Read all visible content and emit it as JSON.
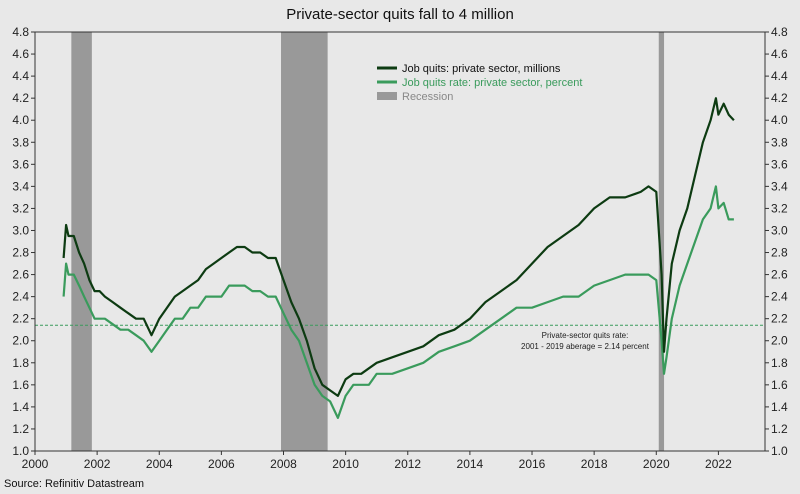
{
  "title": "Private-sector quits fall to 4 million",
  "source": "Source: Refinitiv Datastream",
  "colors": {
    "quits": "#0d3b12",
    "quits_rate": "#3a9b5c",
    "recession": "#999999",
    "average_line": "#3a9b5c",
    "background": "#e8e8e8"
  },
  "annotation": {
    "line1": "Private-sector quits rate:",
    "line2": "2001 - 2019 aberage = 2.14 percent"
  },
  "chart_data": {
    "type": "line",
    "title": "Private-sector quits fall to 4 million",
    "xlabel": "",
    "ylabel": "",
    "xlim": [
      2000,
      2023.5
    ],
    "ylim": [
      1.0,
      4.8
    ],
    "x_ticks": [
      "2000",
      "2002",
      "2004",
      "2006",
      "2008",
      "2010",
      "2012",
      "2014",
      "2016",
      "2018",
      "2020",
      "2022"
    ],
    "y_ticks": [
      "1.0",
      "1.2",
      "1.4",
      "1.6",
      "1.8",
      "2.0",
      "2.2",
      "2.4",
      "2.6",
      "2.8",
      "3.0",
      "3.2",
      "3.4",
      "3.6",
      "3.8",
      "4.0",
      "4.2",
      "4.4",
      "4.6",
      "4.8"
    ],
    "grid": false,
    "legend_position": "top-center",
    "recessions": [
      {
        "start": 2001.17,
        "end": 2001.83,
        "label": "Recession"
      },
      {
        "start": 2007.92,
        "end": 2009.42,
        "label": "Recession"
      },
      {
        "start": 2020.08,
        "end": 2020.25,
        "label": "Recession"
      }
    ],
    "reference_line": {
      "y": 2.14,
      "label": "2001 - 2019 aberage = 2.14 percent"
    },
    "series": [
      {
        "name": "Job quits: private sector, millions",
        "x": [
          2000.92,
          2001.0,
          2001.08,
          2001.25,
          2001.42,
          2001.58,
          2001.75,
          2001.92,
          2002.08,
          2002.25,
          2002.5,
          2002.75,
          2003.0,
          2003.25,
          2003.5,
          2003.75,
          2004.0,
          2004.25,
          2004.5,
          2004.75,
          2005.0,
          2005.25,
          2005.5,
          2005.75,
          2006.0,
          2006.25,
          2006.5,
          2006.75,
          2007.0,
          2007.25,
          2007.5,
          2007.75,
          2008.0,
          2008.25,
          2008.5,
          2008.75,
          2009.0,
          2009.25,
          2009.5,
          2009.75,
          2010.0,
          2010.25,
          2010.5,
          2010.75,
          2011.0,
          2011.5,
          2012.0,
          2012.5,
          2013.0,
          2013.5,
          2014.0,
          2014.5,
          2015.0,
          2015.5,
          2016.0,
          2016.5,
          2017.0,
          2017.5,
          2018.0,
          2018.5,
          2019.0,
          2019.5,
          2019.75,
          2020.0,
          2020.17,
          2020.25,
          2020.33,
          2020.5,
          2020.75,
          2021.0,
          2021.25,
          2021.5,
          2021.75,
          2021.92,
          2022.0,
          2022.17,
          2022.33,
          2022.5
        ],
        "values": [
          2.75,
          3.05,
          2.95,
          2.95,
          2.8,
          2.7,
          2.55,
          2.45,
          2.45,
          2.4,
          2.35,
          2.3,
          2.25,
          2.2,
          2.2,
          2.05,
          2.2,
          2.3,
          2.4,
          2.45,
          2.5,
          2.55,
          2.65,
          2.7,
          2.75,
          2.8,
          2.85,
          2.85,
          2.8,
          2.8,
          2.75,
          2.75,
          2.55,
          2.35,
          2.2,
          2.0,
          1.75,
          1.6,
          1.55,
          1.5,
          1.65,
          1.7,
          1.7,
          1.75,
          1.8,
          1.85,
          1.9,
          1.95,
          2.05,
          2.1,
          2.2,
          2.35,
          2.45,
          2.55,
          2.7,
          2.85,
          2.95,
          3.05,
          3.2,
          3.3,
          3.3,
          3.35,
          3.4,
          3.35,
          2.6,
          1.9,
          2.2,
          2.7,
          3.0,
          3.2,
          3.5,
          3.8,
          4.0,
          4.2,
          4.05,
          4.15,
          4.05,
          4.0
        ]
      },
      {
        "name": "Job quits rate: private sector, percent",
        "x": [
          2000.92,
          2001.0,
          2001.08,
          2001.25,
          2001.42,
          2001.58,
          2001.75,
          2001.92,
          2002.08,
          2002.25,
          2002.5,
          2002.75,
          2003.0,
          2003.25,
          2003.5,
          2003.75,
          2004.0,
          2004.25,
          2004.5,
          2004.75,
          2005.0,
          2005.25,
          2005.5,
          2005.75,
          2006.0,
          2006.25,
          2006.5,
          2006.75,
          2007.0,
          2007.25,
          2007.5,
          2007.75,
          2008.0,
          2008.25,
          2008.5,
          2008.75,
          2009.0,
          2009.25,
          2009.5,
          2009.75,
          2010.0,
          2010.25,
          2010.5,
          2010.75,
          2011.0,
          2011.5,
          2012.0,
          2012.5,
          2013.0,
          2013.5,
          2014.0,
          2014.5,
          2015.0,
          2015.5,
          2016.0,
          2016.5,
          2017.0,
          2017.5,
          2018.0,
          2018.5,
          2019.0,
          2019.5,
          2019.75,
          2020.0,
          2020.17,
          2020.25,
          2020.33,
          2020.5,
          2020.75,
          2021.0,
          2021.25,
          2021.5,
          2021.75,
          2021.92,
          2022.0,
          2022.17,
          2022.33,
          2022.5
        ],
        "values": [
          2.4,
          2.7,
          2.6,
          2.6,
          2.5,
          2.4,
          2.3,
          2.2,
          2.2,
          2.2,
          2.15,
          2.1,
          2.1,
          2.05,
          2.0,
          1.9,
          2.0,
          2.1,
          2.2,
          2.2,
          2.3,
          2.3,
          2.4,
          2.4,
          2.4,
          2.5,
          2.5,
          2.5,
          2.45,
          2.45,
          2.4,
          2.4,
          2.25,
          2.1,
          2.0,
          1.8,
          1.6,
          1.5,
          1.45,
          1.3,
          1.5,
          1.6,
          1.6,
          1.6,
          1.7,
          1.7,
          1.75,
          1.8,
          1.9,
          1.95,
          2.0,
          2.1,
          2.2,
          2.3,
          2.3,
          2.35,
          2.4,
          2.4,
          2.5,
          2.55,
          2.6,
          2.6,
          2.6,
          2.55,
          2.0,
          1.7,
          1.85,
          2.2,
          2.5,
          2.7,
          2.9,
          3.1,
          3.2,
          3.4,
          3.2,
          3.25,
          3.1,
          3.1
        ]
      }
    ]
  }
}
